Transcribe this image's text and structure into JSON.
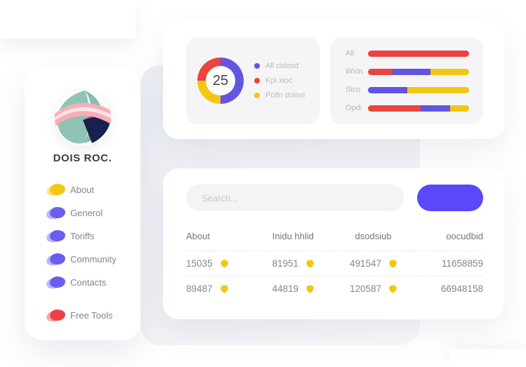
{
  "colors": {
    "accent_red": "#ea4440",
    "accent_yellow": "#f2c613",
    "accent_indigo": "#6355e2",
    "menu_indigo": "#6c5cf0",
    "free_tools_red": "#ee4048",
    "button_blue": "#5a48fa",
    "panel_gray": "#f5f5f7"
  },
  "sidebar": {
    "title": "DOIS ROC.",
    "logo": "abstract-circle-logo",
    "menu": [
      {
        "label": "About",
        "color": "#f2c613",
        "separated": false
      },
      {
        "label": "Generol",
        "color": "#6c5cf0",
        "separated": false
      },
      {
        "label": "Toriffs",
        "color": "#6c5cf0",
        "separated": false
      },
      {
        "label": "Community",
        "color": "#6c5cf0",
        "separated": false
      },
      {
        "label": "Contacts",
        "color": "#6c5cf0",
        "separated": false
      },
      {
        "label": "Free Tools",
        "color": "#ee4048",
        "separated": true
      }
    ]
  },
  "stats_card": {
    "donut": {
      "center_value": "25",
      "draw": [
        {
          "label": "All cidosd",
          "color": "#6355e2",
          "percent": 50
        },
        {
          "label": "Pcifn doinvi",
          "color": "#f2c613",
          "percent": 25
        },
        {
          "label": "Kpi xioc",
          "color": "#ea4440",
          "percent": 25
        }
      ],
      "legend": [
        {
          "label": "All cidosd",
          "color": "#6355e2"
        },
        {
          "label": "Kpi xioc",
          "color": "#ea4440"
        },
        {
          "label": "Pcifn doinvi",
          "color": "#f2c613"
        }
      ]
    },
    "bars": [
      {
        "label": "All",
        "segments": [
          {
            "color": "#ea4440",
            "percent": 100
          }
        ]
      },
      {
        "label": "Wxin",
        "segments": [
          {
            "color": "#ea4440",
            "percent": 24
          },
          {
            "color": "#6355e2",
            "percent": 38
          },
          {
            "color": "#f2c613",
            "percent": 38
          }
        ]
      },
      {
        "label": "Sico",
        "segments": [
          {
            "color": "#6355e2",
            "percent": 39
          },
          {
            "color": "#f2c613",
            "percent": 61
          }
        ]
      },
      {
        "label": "Opdi",
        "segments": [
          {
            "color": "#ea4440",
            "percent": 52
          },
          {
            "color": "#6355e2",
            "percent": 29
          },
          {
            "color": "#f2c613",
            "percent": 19
          }
        ]
      }
    ]
  },
  "table_card": {
    "search_placeholder": "Search...",
    "button_label": "",
    "headers": [
      "About",
      "Inidu hhlid",
      "dsodsiub",
      "oocudbid"
    ],
    "rows": [
      [
        {
          "value": "15035",
          "badge": true
        },
        {
          "value": "81951",
          "badge": true
        },
        {
          "value": "491547",
          "badge": true
        },
        {
          "value": "11658859",
          "badge": false
        }
      ],
      [
        {
          "value": "89487",
          "badge": true
        },
        {
          "value": "44819",
          "badge": true
        },
        {
          "value": "120587",
          "badge": true
        },
        {
          "value": "66948158",
          "badge": false
        }
      ]
    ]
  },
  "chart_data": [
    {
      "type": "pie",
      "title": "",
      "center_label": "25",
      "labels": [
        "All cidosd",
        "Kpi xioc",
        "Pcifn doinvi"
      ],
      "values": [
        50,
        25,
        25
      ],
      "colors": [
        "#6355e2",
        "#ea4440",
        "#f2c613"
      ],
      "legend_position": "right",
      "style": "donut"
    },
    {
      "type": "bar",
      "title": "",
      "orientation": "horizontal",
      "stacked": true,
      "categories": [
        "All",
        "Wxin",
        "Sico",
        "Opdi"
      ],
      "series": [
        {
          "name": "red",
          "color": "#ea4440",
          "values": [
            100,
            24,
            0,
            52
          ]
        },
        {
          "name": "indigo",
          "color": "#6355e2",
          "values": [
            0,
            38,
            39,
            29
          ]
        },
        {
          "name": "yellow",
          "color": "#f2c613",
          "values": [
            0,
            38,
            61,
            19
          ]
        }
      ],
      "xlim": [
        0,
        100
      ],
      "grid": false
    }
  ]
}
